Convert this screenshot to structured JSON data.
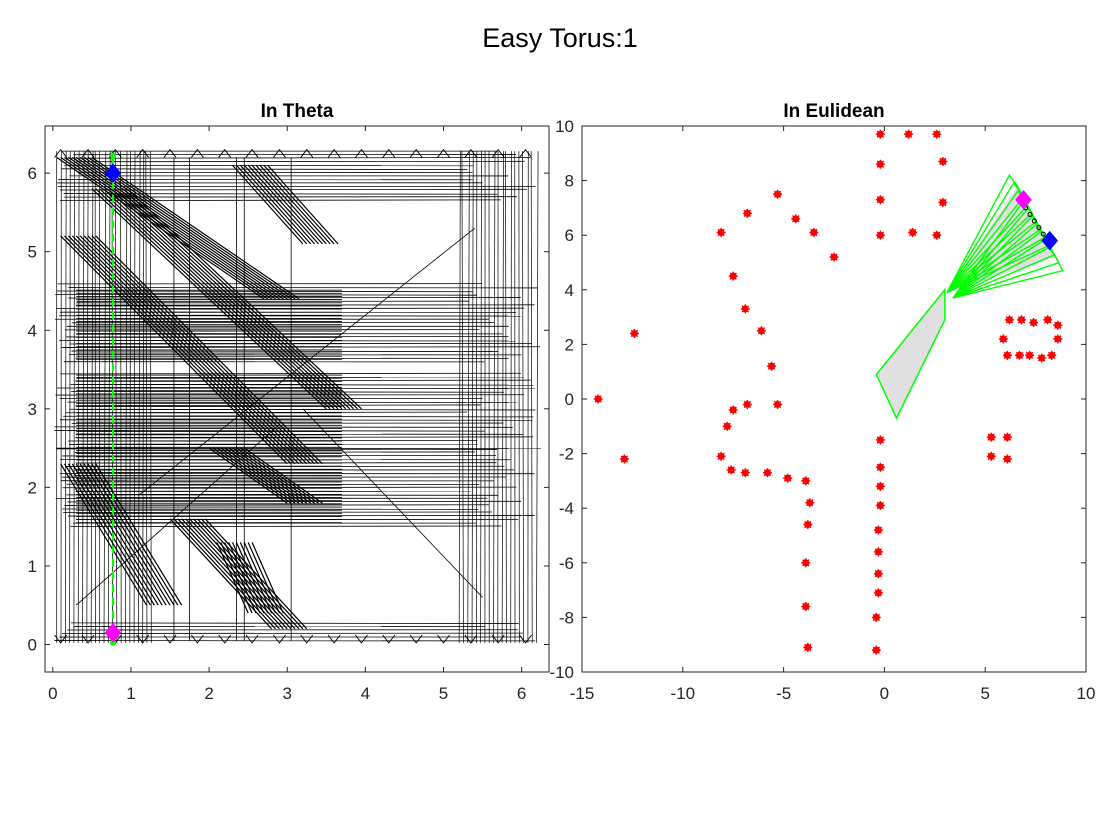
{
  "figure": {
    "title": "Easy Torus:1"
  },
  "colors": {
    "obstacle": "#ff0000",
    "start": "#ff00ff",
    "goal": "#0000ff",
    "path": "#00ff00",
    "robot_fill": "#e0e0e0",
    "tree": "#000000"
  },
  "chart_data": [
    {
      "type": "line",
      "title": "In Theta",
      "xlabel": "",
      "ylabel": "",
      "xlim": [
        -0.1,
        6.35
      ],
      "ylim": [
        -0.35,
        6.6
      ],
      "xticks": [
        0,
        1,
        2,
        3,
        4,
        5,
        6
      ],
      "yticks": [
        0,
        1,
        2,
        3,
        4,
        5,
        6
      ],
      "grid": false,
      "legend": "none",
      "start": [
        0.77,
        0.15
      ],
      "goal": [
        0.77,
        6.0
      ],
      "path": {
        "x": [
          0.77,
          0.77
        ],
        "y": [
          0.0,
          6.28
        ]
      },
      "tree_bands_y": [
        [
          0.05,
          0.3
        ],
        [
          1.5,
          2.5
        ],
        [
          2.5,
          3.45
        ],
        [
          3.6,
          4.6
        ],
        [
          5.65,
          6.28
        ]
      ],
      "tree_columns_x": [
        [
          0.05,
          1.3
        ],
        [
          5.2,
          6.2
        ]
      ]
    },
    {
      "type": "scatter",
      "title": "In Eulidean",
      "xlabel": "",
      "ylabel": "",
      "xlim": [
        -15,
        10
      ],
      "ylim": [
        -10,
        10
      ],
      "xticks": [
        -15,
        -10,
        -5,
        0,
        5,
        10
      ],
      "yticks": [
        -10,
        -8,
        -6,
        -4,
        -2,
        0,
        2,
        4,
        6,
        8,
        10
      ],
      "grid": false,
      "legend": "none",
      "obstacles": [
        [
          -14.2,
          0.0
        ],
        [
          -12.9,
          -2.2
        ],
        [
          -12.4,
          2.4
        ],
        [
          -8.1,
          -2.1
        ],
        [
          -7.8,
          -1.0
        ],
        [
          -7.5,
          -0.4
        ],
        [
          -7.6,
          -2.6
        ],
        [
          -6.9,
          -2.7
        ],
        [
          -6.8,
          -0.2
        ],
        [
          -5.8,
          -2.7
        ],
        [
          -5.3,
          -0.2
        ],
        [
          -4.8,
          -2.9
        ],
        [
          -3.9,
          -3.0
        ],
        [
          -3.7,
          -3.8
        ],
        [
          -3.8,
          -4.6
        ],
        [
          -3.9,
          -6.0
        ],
        [
          -3.9,
          -7.6
        ],
        [
          -3.8,
          -9.1
        ],
        [
          -8.1,
          6.1
        ],
        [
          -6.8,
          6.8
        ],
        [
          -5.3,
          7.5
        ],
        [
          -4.4,
          6.6
        ],
        [
          -3.5,
          6.1
        ],
        [
          -2.5,
          5.2
        ],
        [
          -7.5,
          4.5
        ],
        [
          -6.9,
          3.3
        ],
        [
          -6.1,
          2.5
        ],
        [
          -5.6,
          1.2
        ],
        [
          -0.2,
          9.7
        ],
        [
          1.2,
          9.7
        ],
        [
          2.6,
          9.7
        ],
        [
          -0.2,
          8.6
        ],
        [
          2.9,
          8.7
        ],
        [
          -0.2,
          7.3
        ],
        [
          2.9,
          7.2
        ],
        [
          -0.2,
          6.0
        ],
        [
          1.4,
          6.1
        ],
        [
          2.6,
          6.0
        ],
        [
          -0.2,
          -1.5
        ],
        [
          -0.2,
          -2.5
        ],
        [
          -0.2,
          -3.2
        ],
        [
          -0.2,
          -3.9
        ],
        [
          -0.3,
          -4.8
        ],
        [
          -0.3,
          -5.6
        ],
        [
          -0.3,
          -6.4
        ],
        [
          -0.3,
          -7.1
        ],
        [
          -0.4,
          -8.0
        ],
        [
          -0.4,
          -9.2
        ],
        [
          5.3,
          -1.4
        ],
        [
          6.1,
          -1.4
        ],
        [
          5.3,
          -2.1
        ],
        [
          6.1,
          -2.2
        ],
        [
          6.2,
          2.9
        ],
        [
          6.8,
          2.9
        ],
        [
          7.4,
          2.8
        ],
        [
          8.1,
          2.9
        ],
        [
          8.6,
          2.7
        ],
        [
          5.9,
          2.2
        ],
        [
          8.6,
          2.2
        ],
        [
          6.1,
          1.6
        ],
        [
          6.7,
          1.6
        ],
        [
          7.2,
          1.6
        ],
        [
          7.8,
          1.5
        ],
        [
          8.3,
          1.6
        ]
      ],
      "start": [
        6.9,
        7.3
      ],
      "goal": [
        8.2,
        5.8
      ]
    }
  ]
}
